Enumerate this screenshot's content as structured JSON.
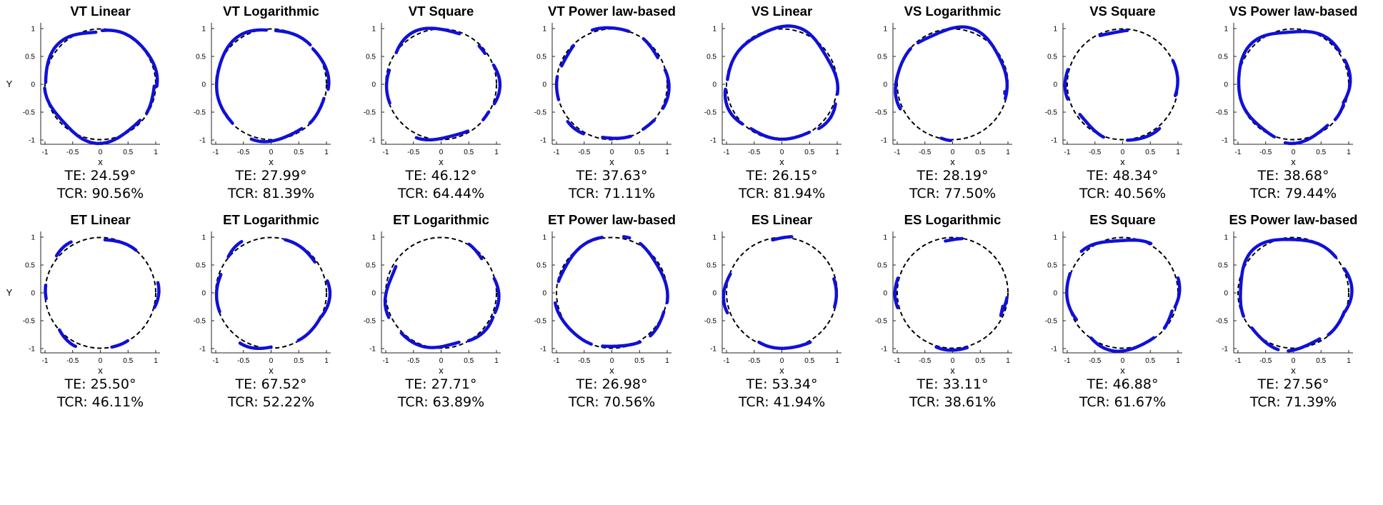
{
  "chart_data": [
    {
      "type": "line",
      "title": "VT Linear",
      "xlabel": "x",
      "ylabel": "Y",
      "xlim": [
        -1,
        1
      ],
      "ylim": [
        -1,
        1
      ],
      "xticks": [
        "-1",
        "-0.5",
        "0",
        "0.5",
        "1"
      ],
      "yticks": [
        "-1",
        "-0.5",
        "0",
        "0.5",
        "1"
      ],
      "series": [
        {
          "name": "reference",
          "values": "unit circle"
        },
        {
          "name": "trajectory",
          "arcs": [
            [
              -2,
              88
            ],
            [
              95,
              178
            ],
            [
              184,
              318
            ],
            [
              328,
              358
            ]
          ],
          "wobble": 0.04
        }
      ],
      "metrics": {
        "te_label": "TE: 24.59°",
        "tcr_label": "TCR: 90.56%",
        "te_deg": 24.59,
        "tcr_pct": 90.56
      }
    },
    {
      "type": "line",
      "title": "VT Logarithmic",
      "xlabel": "x",
      "ylabel": "",
      "xlim": [
        -1,
        1
      ],
      "ylim": [
        -1,
        1
      ],
      "xticks": [
        "-1",
        "-0.5",
        "0",
        "0.5",
        "1"
      ],
      "yticks": [
        "-1",
        "-0.5",
        "0",
        "0.5",
        "1"
      ],
      "series": [
        {
          "name": "reference",
          "values": "unit circle"
        },
        {
          "name": "trajectory",
          "arcs": [
            [
              -5,
              40
            ],
            [
              45,
              85
            ],
            [
              95,
              225
            ],
            [
              250,
              305
            ],
            [
              315,
              345
            ]
          ],
          "wobble": 0.03
        }
      ],
      "metrics": {
        "te_label": "TE: 27.99°",
        "tcr_label": "TCR: 81.39%",
        "te_deg": 27.99,
        "tcr_pct": 81.39
      }
    },
    {
      "type": "line",
      "title": "VT Square",
      "xlabel": "x",
      "ylabel": "",
      "xlim": [
        -1,
        1
      ],
      "ylim": [
        -1,
        1
      ],
      "xticks": [
        "-1",
        "-0.5",
        "0",
        "0.5",
        "1"
      ],
      "yticks": [
        "-1",
        "-0.5",
        "0",
        "0.5",
        "1"
      ],
      "series": [
        {
          "name": "reference",
          "values": "unit circle"
        },
        {
          "name": "trajectory",
          "arcs": [
            [
              -20,
              20
            ],
            [
              35,
              45
            ],
            [
              70,
              145
            ],
            [
              165,
              200
            ],
            [
              245,
              300
            ],
            [
              320,
              330
            ]
          ],
          "wobble": 0.04
        }
      ],
      "metrics": {
        "te_label": "TE: 46.12°",
        "tcr_label": "TCR: 64.44%",
        "te_deg": 46.12,
        "tcr_pct": 64.44
      }
    },
    {
      "type": "line",
      "title": "VT Power law-based",
      "xlabel": "x",
      "ylabel": "",
      "xlim": [
        -1,
        1
      ],
      "ylim": [
        -1,
        1
      ],
      "xticks": [
        "-1",
        "-0.5",
        "0",
        "0.5",
        "1"
      ],
      "yticks": [
        "-1",
        "-0.5",
        "0",
        "0.5",
        "1"
      ],
      "series": [
        {
          "name": "reference",
          "values": "unit circle"
        },
        {
          "name": "trajectory",
          "arcs": [
            [
              -25,
              15
            ],
            [
              30,
              55
            ],
            [
              72,
              110
            ],
            [
              135,
              160
            ],
            [
              172,
              196
            ],
            [
              220,
              240
            ],
            [
              260,
              290
            ],
            [
              305,
              320
            ]
          ],
          "wobble": 0.03
        }
      ],
      "metrics": {
        "te_label": "TE: 37.63°",
        "tcr_label": "TCR: 71.11%",
        "te_deg": 37.63,
        "tcr_pct": 71.11
      }
    },
    {
      "type": "line",
      "title": "VS Linear",
      "xlabel": "x",
      "ylabel": "",
      "xlim": [
        -1,
        1
      ],
      "ylim": [
        -1,
        1
      ],
      "xticks": [
        "-1",
        "-0.5",
        "0",
        "0.5",
        "1"
      ],
      "yticks": [
        "-1",
        "-0.5",
        "0",
        "0.5",
        "1"
      ],
      "series": [
        {
          "name": "reference",
          "values": "unit circle"
        },
        {
          "name": "trajectory",
          "arcs": [
            [
              -10,
              175
            ],
            [
              185,
              225
            ],
            [
              235,
              300
            ],
            [
              310,
              340
            ]
          ],
          "wobble": 0.04
        }
      ],
      "metrics": {
        "te_label": "TE: 26.15°",
        "tcr_label": "TCR: 81.94%",
        "te_deg": 26.15,
        "tcr_pct": 81.94
      }
    },
    {
      "type": "line",
      "title": "VS Logarithmic",
      "xlabel": "x",
      "ylabel": "",
      "xlim": [
        -1,
        1
      ],
      "ylim": [
        -1,
        1
      ],
      "xticks": [
        "-1",
        "-0.5",
        "0",
        "0.5",
        "1"
      ],
      "yticks": [
        "-1",
        "-0.5",
        "0",
        "0.5",
        "1"
      ],
      "series": [
        {
          "name": "reference",
          "values": "unit circle"
        },
        {
          "name": "trajectory",
          "arcs": [
            [
              -15,
              130
            ],
            [
              140,
              205
            ],
            [
              258,
              268
            ],
            [
              350,
              352
            ]
          ],
          "wobble": 0.04
        }
      ],
      "metrics": {
        "te_label": "TE: 28.19°",
        "tcr_label": "TCR: 77.50%",
        "te_deg": 28.19,
        "tcr_pct": 77.5
      }
    },
    {
      "type": "line",
      "title": "VS Square",
      "xlabel": "x",
      "ylabel": "",
      "xlim": [
        -1,
        1
      ],
      "ylim": [
        -1,
        1
      ],
      "xticks": [
        "-1",
        "-0.5",
        "0",
        "0.5",
        "1"
      ],
      "yticks": [
        "-1",
        "-0.5",
        "0",
        "0.5",
        "1"
      ],
      "series": [
        {
          "name": "reference",
          "values": "unit circle"
        },
        {
          "name": "trajectory",
          "arcs": [
            [
              -12,
              25
            ],
            [
              85,
              115
            ],
            [
              165,
              195
            ],
            [
              215,
              250
            ],
            [
              275,
              310
            ]
          ],
          "wobble": 0.04
        }
      ],
      "metrics": {
        "te_label": "TE: 48.34°",
        "tcr_label": "TCR: 40.56%",
        "te_deg": 48.34,
        "tcr_pct": 40.56
      }
    },
    {
      "type": "line",
      "title": "VS Power law-based",
      "xlabel": "x",
      "ylabel": "",
      "xlim": [
        -1,
        1
      ],
      "ylim": [
        -1,
        1
      ],
      "xticks": [
        "-1",
        "-0.5",
        "0",
        "0.5",
        "1"
      ],
      "yticks": [
        "-1",
        "-0.5",
        "0",
        "0.5",
        "1"
      ],
      "series": [
        {
          "name": "reference",
          "values": "unit circle"
        },
        {
          "name": "trajectory",
          "arcs": [
            [
              -20,
              25
            ],
            [
              35,
              250
            ],
            [
              262,
              310
            ],
            [
              320,
              338
            ]
          ],
          "wobble": 0.04
        }
      ],
      "metrics": {
        "te_label": "TE: 38.68°",
        "tcr_label": "TCR: 79.44%",
        "te_deg": 38.68,
        "tcr_pct": 79.44
      }
    },
    {
      "type": "line",
      "title": "ET Linear",
      "xlabel": "x",
      "ylabel": "Y",
      "xlim": [
        -1,
        1
      ],
      "ylim": [
        -1,
        1
      ],
      "xticks": [
        "-1",
        "-0.5",
        "0",
        "0.5",
        "1"
      ],
      "yticks": [
        "-1",
        "-0.5",
        "0",
        "0.5",
        "1"
      ],
      "series": [
        {
          "name": "reference",
          "values": "unit circle"
        },
        {
          "name": "trajectory",
          "arcs": [
            [
              -15,
              10
            ],
            [
              50,
              85
            ],
            [
              120,
              140
            ],
            [
              172,
              186
            ],
            [
              222,
              245
            ],
            [
              282,
              300
            ]
          ],
          "wobble": 0.04
        }
      ],
      "metrics": {
        "te_label": "TE: 25.50°",
        "tcr_label": "TCR: 46.11%",
        "te_deg": 25.5,
        "tcr_pct": 46.11
      }
    },
    {
      "type": "line",
      "title": "ET Logarithmic",
      "xlabel": "x",
      "ylabel": "",
      "xlim": [
        -1,
        1
      ],
      "ylim": [
        -1,
        1
      ],
      "xticks": [
        "-1",
        "-0.5",
        "0",
        "0.5",
        "1"
      ],
      "yticks": [
        "-1",
        "-0.5",
        "0",
        "0.5",
        "1"
      ],
      "series": [
        {
          "name": "reference",
          "values": "unit circle"
        },
        {
          "name": "trajectory",
          "arcs": [
            [
              -25,
              12
            ],
            [
              35,
              75
            ],
            [
              120,
              140
            ],
            [
              160,
              200
            ],
            [
              238,
              270
            ],
            [
              300,
              335
            ]
          ],
          "wobble": 0.04
        }
      ],
      "metrics": {
        "te_label": "TE: 67.52°",
        "tcr_label": "TCR: 52.22%",
        "te_deg": 67.52,
        "tcr_pct": 52.22
      }
    },
    {
      "type": "line",
      "title": "ET Logarithmic",
      "xlabel": "x",
      "ylabel": "",
      "xlim": [
        -1,
        1
      ],
      "ylim": [
        -1,
        1
      ],
      "xticks": [
        "-1",
        "-0.5",
        "0",
        "0.5",
        "1"
      ],
      "yticks": [
        "-1",
        "-0.5",
        "0",
        "0.5",
        "1"
      ],
      "series": [
        {
          "name": "reference",
          "values": "unit circle"
        },
        {
          "name": "trajectory",
          "arcs": [
            [
              -20,
              15
            ],
            [
              40,
              60
            ],
            [
              150,
              205
            ],
            [
              225,
              290
            ],
            [
              300,
              335
            ]
          ],
          "wobble": 0.04
        }
      ],
      "metrics": {
        "te_label": "TE: 27.71°",
        "tcr_label": "TCR: 63.89%",
        "te_deg": 27.71,
        "tcr_pct": 63.89
      }
    },
    {
      "type": "line",
      "title": "ET Power law-based",
      "xlabel": "x",
      "ylabel": "",
      "xlim": [
        -1,
        1
      ],
      "ylim": [
        -1,
        1
      ],
      "xticks": [
        "-1",
        "-0.5",
        "0",
        "0.5",
        "1"
      ],
      "yticks": [
        "-1",
        "-0.5",
        "0",
        "0.5",
        "1"
      ],
      "series": [
        {
          "name": "reference",
          "values": "unit circle"
        },
        {
          "name": "trajectory",
          "arcs": [
            [
              -10,
              60
            ],
            [
              72,
              78
            ],
            [
              100,
              168
            ],
            [
              190,
              248
            ],
            [
              260,
              300
            ],
            [
              312,
              340
            ]
          ],
          "wobble": 0.03
        }
      ],
      "metrics": {
        "te_label": "TE: 26.98°",
        "tcr_label": "TCR: 70.56%",
        "te_deg": 26.98,
        "tcr_pct": 70.56
      }
    },
    {
      "type": "line",
      "title": "ES Linear",
      "xlabel": "x",
      "ylabel": "",
      "xlim": [
        -1,
        1
      ],
      "ylim": [
        -1,
        1
      ],
      "xticks": [
        "-1",
        "-0.5",
        "0",
        "0.5",
        "1"
      ],
      "yticks": [
        "-1",
        "-0.5",
        "0",
        "0.5",
        "1"
      ],
      "series": [
        {
          "name": "reference",
          "values": "unit circle"
        },
        {
          "name": "trajectory",
          "arcs": [
            [
              -15,
              15
            ],
            [
              80,
              100
            ],
            [
              160,
              200
            ],
            [
              245,
              300
            ]
          ],
          "wobble": 0.04
        }
      ],
      "metrics": {
        "te_label": "TE: 53.34°",
        "tcr_label": "TCR: 41.94%",
        "te_deg": 53.34,
        "tcr_pct": 41.94
      }
    },
    {
      "type": "line",
      "title": "ES Logarithmic",
      "xlabel": "x",
      "ylabel": "",
      "xlim": [
        -1,
        1
      ],
      "ylim": [
        -1,
        1
      ],
      "xticks": [
        "-1",
        "-0.5",
        "0",
        "0.5",
        "1"
      ],
      "yticks": [
        "-1",
        "-0.5",
        "0",
        "0.5",
        "1"
      ],
      "series": [
        {
          "name": "reference",
          "values": "unit circle"
        },
        {
          "name": "trajectory",
          "arcs": [
            [
              -20,
              -5
            ],
            [
              80,
              98
            ],
            [
              165,
              195
            ],
            [
              253,
              285
            ],
            [
              335,
              345
            ]
          ],
          "wobble": 0.04
        }
      ],
      "metrics": {
        "te_label": "TE: 33.11°",
        "tcr_label": "TCR: 38.61%",
        "te_deg": 33.11,
        "tcr_pct": 38.61
      }
    },
    {
      "type": "line",
      "title": "ES Square",
      "xlabel": "x",
      "ylabel": "",
      "xlim": [
        -1,
        1
      ],
      "ylim": [
        -1,
        1
      ],
      "xticks": [
        "-1",
        "-0.5",
        "0",
        "0.5",
        "1"
      ],
      "yticks": [
        "-1",
        "-0.5",
        "0",
        "0.5",
        "1"
      ],
      "series": [
        {
          "name": "reference",
          "values": "unit circle"
        },
        {
          "name": "trajectory",
          "arcs": [
            [
              -15,
              15
            ],
            [
              60,
              135
            ],
            [
              160,
              210
            ],
            [
              235,
              305
            ],
            [
              320,
              340
            ]
          ],
          "wobble": 0.04
        }
      ],
      "metrics": {
        "te_label": "TE: 46.88°",
        "tcr_label": "TCR: 61.67%",
        "te_deg": 46.88,
        "tcr_pct": 61.67
      }
    },
    {
      "type": "line",
      "title": "ES Power law-based",
      "xlabel": "x",
      "ylabel": "",
      "xlim": [
        -1,
        1
      ],
      "ylim": [
        -1,
        1
      ],
      "xticks": [
        "-1",
        "-0.5",
        "0",
        "0.5",
        "1"
      ],
      "yticks": [
        "-1",
        "-0.5",
        "0",
        "0.5",
        "1"
      ],
      "series": [
        {
          "name": "reference",
          "values": "unit circle"
        },
        {
          "name": "trajectory",
          "arcs": [
            [
              -20,
              25
            ],
            [
              40,
              205
            ],
            [
              220,
              255
            ],
            [
              265,
              300
            ],
            [
              310,
              340
            ]
          ],
          "wobble": 0.04
        }
      ],
      "metrics": {
        "te_label": "TE: 27.56°",
        "tcr_label": "TCR: 71.39%",
        "te_deg": 27.56,
        "tcr_pct": 71.39
      }
    }
  ],
  "colors": {
    "trajectory": "#1010d8",
    "reference": "#000000",
    "axis": "#262626"
  }
}
